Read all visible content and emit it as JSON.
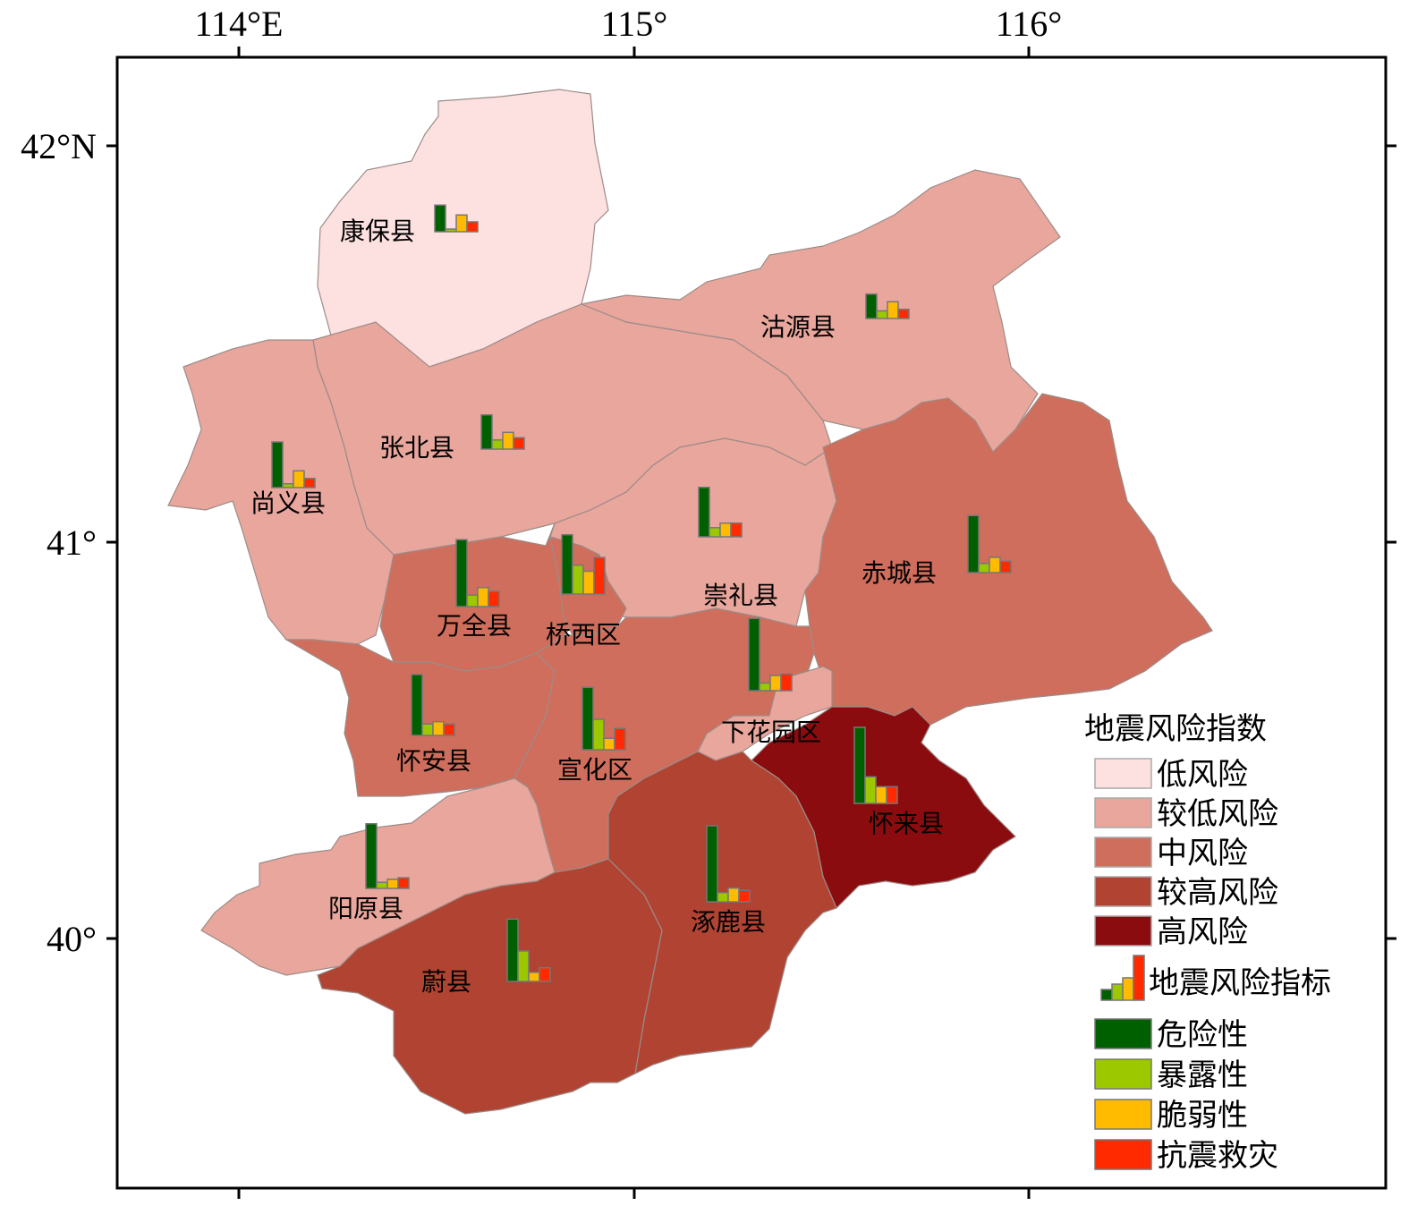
{
  "axes": {
    "lon_labels": [
      "114°E",
      "115°",
      "116°"
    ],
    "lat_labels": [
      "42°N",
      "41°",
      "40°"
    ]
  },
  "colors": {
    "low": "#fde0e0",
    "lower": "#e8a69c",
    "medium": "#cf6e5c",
    "higher": "#b04332",
    "high": "#8b0c0e",
    "hazard": "#006000",
    "exposure": "#9cc800",
    "vulnerability": "#ffbb00",
    "resistance": "#ff2a00"
  },
  "legend": {
    "risk_title": "地震风险指数",
    "risk_classes": [
      {
        "label": "低风险",
        "color": "#fde0e0"
      },
      {
        "label": "较低风险",
        "color": "#e8a69c"
      },
      {
        "label": "中风险",
        "color": "#cf6e5c"
      },
      {
        "label": "较高风险",
        "color": "#b04332"
      },
      {
        "label": "高风险",
        "color": "#8b0c0e"
      }
    ],
    "indicator_title": "地震风险指标",
    "indicators": [
      {
        "label": "危险性",
        "color": "#006000"
      },
      {
        "label": "暴露性",
        "color": "#9cc800"
      },
      {
        "label": "脆弱性",
        "color": "#ffbb00"
      },
      {
        "label": "抗震救灾",
        "color": "#ff2a00"
      }
    ]
  },
  "counties": [
    {
      "name": "康保县",
      "risk": "low",
      "indicators": [
        0.35,
        0.02,
        0.22,
        0.13
      ]
    },
    {
      "name": "沽源县",
      "risk": "lower",
      "indicators": [
        0.32,
        0.1,
        0.22,
        0.12
      ]
    },
    {
      "name": "张北县",
      "risk": "lower",
      "indicators": [
        0.45,
        0.12,
        0.22,
        0.15
      ]
    },
    {
      "name": "尚义县",
      "risk": "lower",
      "indicators": [
        0.6,
        0.05,
        0.22,
        0.12
      ]
    },
    {
      "name": "崇礼县",
      "risk": "lower",
      "indicators": [
        0.65,
        0.12,
        0.18,
        0.18
      ]
    },
    {
      "name": "赤城县",
      "risk": "medium",
      "indicators": [
        0.75,
        0.12,
        0.2,
        0.15
      ]
    },
    {
      "name": "万全县",
      "risk": "medium",
      "indicators": [
        0.88,
        0.15,
        0.25,
        0.2
      ]
    },
    {
      "name": "桥西区",
      "risk": "medium",
      "indicators": [
        0.78,
        0.38,
        0.3,
        0.48
      ]
    },
    {
      "name": "怀安县",
      "risk": "medium",
      "indicators": [
        0.8,
        0.15,
        0.18,
        0.15
      ]
    },
    {
      "name": "宣化区",
      "risk": "medium",
      "indicators": [
        0.82,
        0.4,
        0.15,
        0.28
      ]
    },
    {
      "name": "下花园区",
      "risk": "lower",
      "indicators": [
        0.95,
        0.1,
        0.2,
        0.22
      ]
    },
    {
      "name": "怀来县",
      "risk": "high",
      "indicators": [
        1.0,
        0.35,
        0.22,
        0.22
      ]
    },
    {
      "name": "阳原县",
      "risk": "lower",
      "indicators": [
        0.85,
        0.08,
        0.12,
        0.14
      ]
    },
    {
      "name": "涿鹿县",
      "risk": "higher",
      "indicators": [
        1.0,
        0.12,
        0.18,
        0.15
      ]
    },
    {
      "name": "蔚县",
      "risk": "higher",
      "indicators": [
        0.82,
        0.4,
        0.12,
        0.18
      ]
    }
  ]
}
